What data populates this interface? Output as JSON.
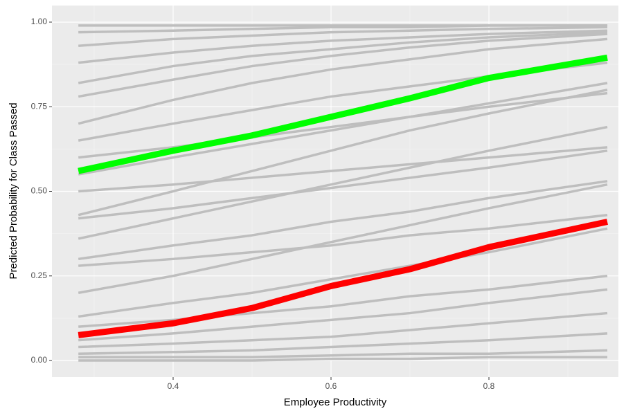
{
  "chart_data": {
    "type": "line",
    "xlabel": "Employee Productivity",
    "ylabel": "Predicted Probability for Class Passed",
    "x": [
      0.28,
      0.4,
      0.5,
      0.6,
      0.7,
      0.8,
      0.95
    ],
    "xlim": [
      0.2465,
      0.964
    ],
    "ylim": [
      -0.049,
      1.049
    ],
    "xticks": [
      0.4,
      0.6,
      0.8
    ],
    "yticks": [
      {
        "value": 0,
        "label": "0.00"
      },
      {
        "value": 0.25,
        "label": "0.25"
      },
      {
        "value": 0.5,
        "label": "0.50"
      },
      {
        "value": 0.75,
        "label": "0.75"
      },
      {
        "value": 1,
        "label": "1.00"
      }
    ],
    "xminor": [
      0.3,
      0.5,
      0.7,
      0.9
    ],
    "yminor": [
      0.125,
      0.375,
      0.625,
      0.875
    ],
    "grid": true,
    "series": [
      {
        "color": "#bebebe",
        "values": [
          0.99,
          0.99,
          0.99,
          0.99,
          0.99,
          0.99,
          0.99
        ]
      },
      {
        "color": "#bebebe",
        "values": [
          0.97,
          0.975,
          0.98,
          0.985,
          0.985,
          0.99,
          0.99
        ]
      },
      {
        "color": "#bebebe",
        "values": [
          0.93,
          0.95,
          0.96,
          0.97,
          0.975,
          0.98,
          0.985
        ]
      },
      {
        "color": "#bebebe",
        "values": [
          0.88,
          0.91,
          0.93,
          0.945,
          0.955,
          0.965,
          0.975
        ]
      },
      {
        "color": "#bebebe",
        "values": [
          0.82,
          0.87,
          0.9,
          0.92,
          0.94,
          0.955,
          0.97
        ]
      },
      {
        "color": "#bebebe",
        "values": [
          0.78,
          0.83,
          0.87,
          0.9,
          0.925,
          0.945,
          0.965
        ]
      },
      {
        "color": "#bebebe",
        "values": [
          0.7,
          0.77,
          0.82,
          0.86,
          0.89,
          0.92,
          0.95
        ]
      },
      {
        "color": "#bebebe",
        "values": [
          0.65,
          0.7,
          0.74,
          0.78,
          0.81,
          0.84,
          0.88
        ]
      },
      {
        "color": "#bebebe",
        "values": [
          0.6,
          0.63,
          0.66,
          0.69,
          0.72,
          0.75,
          0.79
        ]
      },
      {
        "color": "#bebebe",
        "values": [
          0.55,
          0.6,
          0.64,
          0.68,
          0.72,
          0.76,
          0.82
        ]
      },
      {
        "color": "#bebebe",
        "values": [
          0.5,
          0.52,
          0.54,
          0.56,
          0.58,
          0.6,
          0.63
        ]
      },
      {
        "color": "#bebebe",
        "values": [
          0.43,
          0.5,
          0.56,
          0.62,
          0.68,
          0.73,
          0.8
        ]
      },
      {
        "color": "#bebebe",
        "values": [
          0.42,
          0.45,
          0.48,
          0.51,
          0.54,
          0.57,
          0.62
        ]
      },
      {
        "color": "#bebebe",
        "values": [
          0.36,
          0.42,
          0.47,
          0.52,
          0.57,
          0.62,
          0.69
        ]
      },
      {
        "color": "#bebebe",
        "values": [
          0.3,
          0.34,
          0.37,
          0.41,
          0.44,
          0.48,
          0.53
        ]
      },
      {
        "color": "#bebebe",
        "values": [
          0.28,
          0.3,
          0.32,
          0.34,
          0.37,
          0.39,
          0.43
        ]
      },
      {
        "color": "#bebebe",
        "values": [
          0.2,
          0.25,
          0.3,
          0.35,
          0.4,
          0.45,
          0.52
        ]
      },
      {
        "color": "#bebebe",
        "values": [
          0.13,
          0.17,
          0.2,
          0.24,
          0.28,
          0.32,
          0.39
        ]
      },
      {
        "color": "#bebebe",
        "values": [
          0.1,
          0.12,
          0.14,
          0.16,
          0.19,
          0.21,
          0.25
        ]
      },
      {
        "color": "#bebebe",
        "values": [
          0.06,
          0.08,
          0.1,
          0.12,
          0.14,
          0.17,
          0.21
        ]
      },
      {
        "color": "#bebebe",
        "values": [
          0.04,
          0.05,
          0.06,
          0.07,
          0.09,
          0.11,
          0.14
        ]
      },
      {
        "color": "#bebebe",
        "values": [
          0.02,
          0.025,
          0.03,
          0.04,
          0.05,
          0.06,
          0.08
        ]
      },
      {
        "color": "#bebebe",
        "values": [
          0.01,
          0.01,
          0.01,
          0.015,
          0.02,
          0.02,
          0.03
        ]
      },
      {
        "color": "#bebebe",
        "values": [
          0,
          0,
          0,
          0.005,
          0.005,
          0.01,
          0.01
        ]
      },
      {
        "color": "#00ff00",
        "linewidth": 9,
        "values": [
          0.56,
          0.62,
          0.665,
          0.72,
          0.775,
          0.835,
          0.895
        ]
      },
      {
        "color": "#ff0000",
        "linewidth": 9,
        "values": [
          0.075,
          0.11,
          0.155,
          0.22,
          0.27,
          0.335,
          0.41
        ]
      }
    ]
  }
}
